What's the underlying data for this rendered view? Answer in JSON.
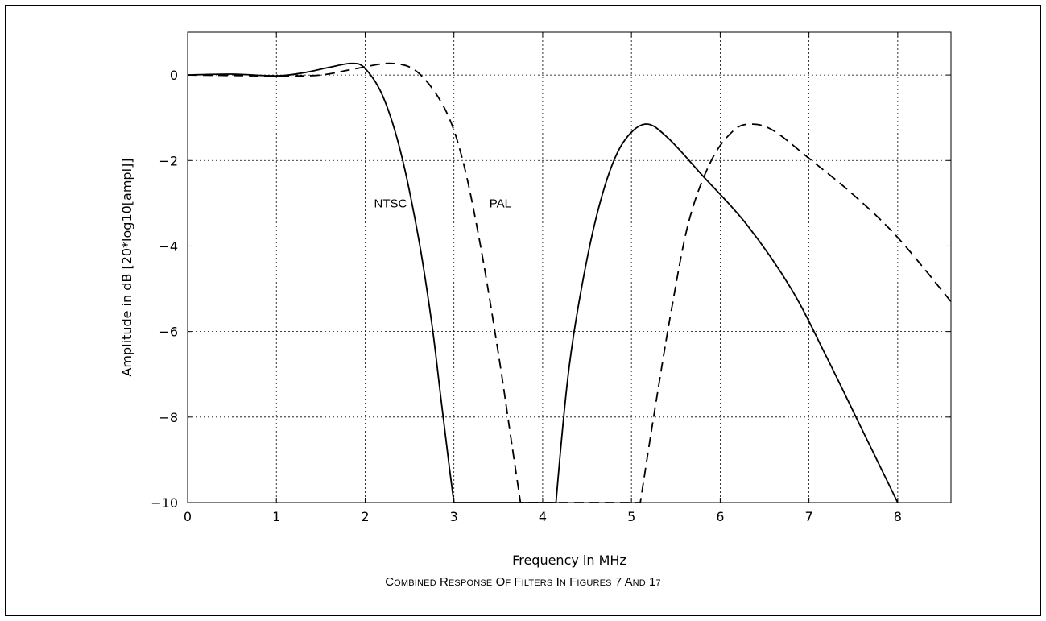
{
  "chart_data": {
    "type": "line",
    "title": "",
    "caption": "COMBINED RESPONSE OF FILTERS IN FIGURES 7 AND 17",
    "xlabel": "Frequency in MHz",
    "ylabel": "Amplitude in dB [20*log10[ampl]]",
    "xlim": [
      0,
      8.6
    ],
    "ylim": [
      -10,
      1
    ],
    "xticks": [
      0,
      1,
      2,
      3,
      4,
      5,
      6,
      7,
      8
    ],
    "yticks": [
      0,
      -2,
      -4,
      -6,
      -8,
      -10
    ],
    "xtick_labels": [
      "0",
      "1",
      "2",
      "3",
      "4",
      "5",
      "6",
      "7",
      "8"
    ],
    "ytick_labels": [
      "0",
      "−2",
      "−4",
      "−6",
      "−8",
      "−10"
    ],
    "grid": true,
    "legend": "none",
    "series": [
      {
        "name": "NTSC",
        "style": "solid",
        "label_at": [
          2.1,
          -3.0
        ],
        "x": [
          0,
          0.5,
          1.0,
          1.3,
          1.6,
          1.85,
          2.0,
          2.2,
          2.4,
          2.6,
          2.75,
          2.85,
          2.95,
          3.0,
          3.5,
          4.0,
          4.15,
          4.3,
          4.5,
          4.7,
          4.9,
          5.15,
          5.4,
          5.8,
          6.3,
          6.8,
          7.2,
          7.6,
          8.0
        ],
        "y": [
          0,
          0.02,
          -0.02,
          0.05,
          0.18,
          0.27,
          0.15,
          -0.5,
          -1.8,
          -3.8,
          -5.8,
          -7.5,
          -9.2,
          -10,
          -10,
          -10,
          -10,
          -6.8,
          -4.3,
          -2.6,
          -1.6,
          -1.15,
          -1.45,
          -2.35,
          -3.5,
          -5.0,
          -6.6,
          -8.3,
          -10
        ]
      },
      {
        "name": "PAL",
        "style": "dashed",
        "label_at": [
          3.4,
          -3.0
        ],
        "x": [
          0,
          1.0,
          1.5,
          1.9,
          2.3,
          2.6,
          2.9,
          3.1,
          3.3,
          3.5,
          3.65,
          3.75,
          4.5,
          5.1,
          5.25,
          5.45,
          5.65,
          5.9,
          6.15,
          6.35,
          6.6,
          7.0,
          7.5,
          8.0,
          8.6
        ],
        "y": [
          0,
          -0.02,
          0.0,
          0.15,
          0.27,
          0.05,
          -0.8,
          -2.0,
          -4.0,
          -6.5,
          -8.6,
          -10,
          -10,
          -10,
          -8.0,
          -5.5,
          -3.4,
          -2.0,
          -1.3,
          -1.15,
          -1.3,
          -1.95,
          -2.8,
          -3.8,
          -5.3
        ]
      }
    ]
  }
}
